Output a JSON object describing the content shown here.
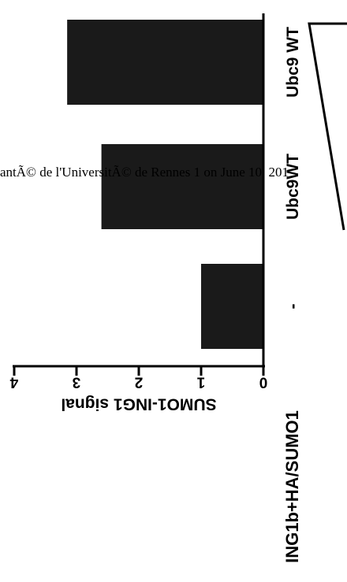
{
  "watermark": "antÃ© de l'UniversitÃ© de Rennes 1 on June 10, 201",
  "condition_label": "ING1b+HA/SUMO1",
  "chart_data": {
    "type": "bar",
    "orientation": "horizontal",
    "categories": [
      "-",
      "Ubc9WT",
      "Ubc9 WT"
    ],
    "values": [
      1.0,
      2.6,
      3.15
    ],
    "ylabel": "SUMO1-ING1 signal",
    "ylim": [
      0,
      4
    ],
    "ticks": [
      "0",
      "1",
      "2",
      "3",
      "4"
    ],
    "grid": false,
    "bar_color": "#1a1a1a",
    "ramp_indicator": true
  }
}
